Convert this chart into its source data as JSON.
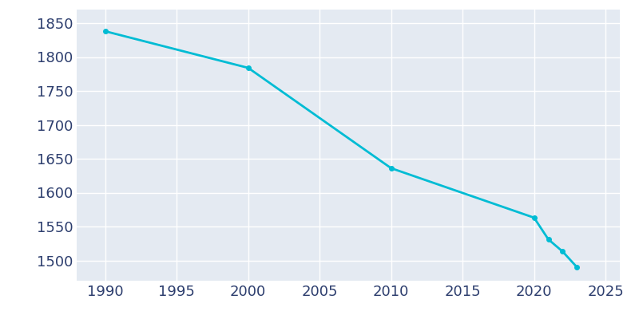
{
  "years": [
    1990,
    2000,
    2010,
    2020,
    2021,
    2022,
    2023
  ],
  "population": [
    1838,
    1784,
    1636,
    1563,
    1531,
    1513,
    1490
  ],
  "line_color": "#00bcd4",
  "marker": "o",
  "marker_size": 4,
  "line_width": 2,
  "bg_color": "#e4eaf2",
  "fig_bg_color": "#ffffff",
  "grid_color": "#ffffff",
  "xlim": [
    1988,
    2026
  ],
  "ylim": [
    1470,
    1870
  ],
  "xticks": [
    1990,
    1995,
    2000,
    2005,
    2010,
    2015,
    2020,
    2025
  ],
  "yticks": [
    1500,
    1550,
    1600,
    1650,
    1700,
    1750,
    1800,
    1850
  ],
  "tick_color": "#2d3e6e",
  "tick_fontsize": 13
}
